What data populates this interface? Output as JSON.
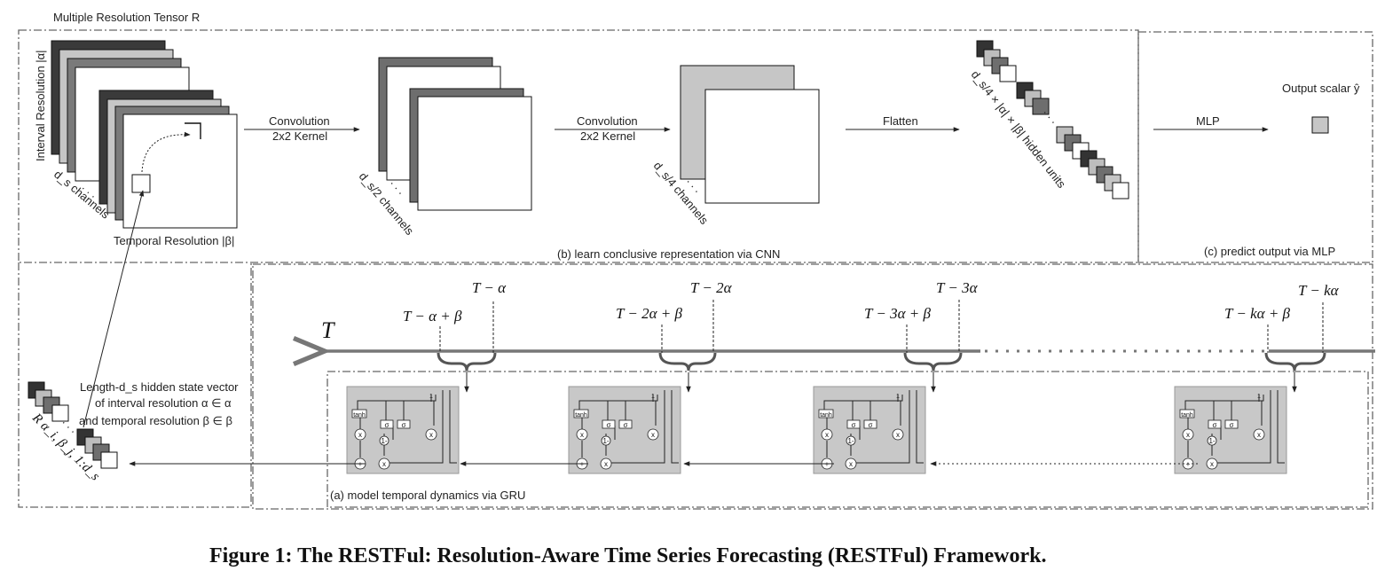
{
  "top_label": "Multiple Resolution Tensor R",
  "tensor": {
    "interval_axis": "Interval Resolution |α|",
    "temporal_axis": "Temporal Resolution |β|",
    "channels": "d_s channels"
  },
  "conv1": {
    "line1": "Convolution",
    "line2": "2x2 Kernel",
    "channels": "d_s/2 channels"
  },
  "conv2": {
    "line1": "Convolution",
    "line2": "2x2 Kernel",
    "channels": "d_s/4 channels"
  },
  "flatten": {
    "label": "Flatten",
    "units": "d_s/4 × |α| × |β| hidden units"
  },
  "mlp": {
    "label": "MLP",
    "output": "Output scalar ŷ"
  },
  "section_b": "(b) learn conclusive representation via CNN",
  "section_c": "(c) predict output via MLP",
  "section_a": "(a) model temporal dynamics via GRU",
  "timeline": {
    "axis": "T",
    "groups": [
      {
        "top": "T − α",
        "bottom": "T − α + β"
      },
      {
        "top": "T − 2α",
        "bottom": "T − 2α + β"
      },
      {
        "top": "T − 3α",
        "bottom": "T − 3α + β"
      },
      {
        "top": "T − kα",
        "bottom": "T − kα + β"
      }
    ]
  },
  "gru_labels": {
    "tanh": "tanh",
    "sigma": "σ",
    "mult": "x",
    "plus": "+",
    "one_minus": "1-",
    "one": "1"
  },
  "hidden": {
    "line1": "Length-d_s hidden state vector",
    "line2": "of interval resolution  α ∈ α",
    "line3": "and temporal resolution β ∈ β",
    "r_label": "R α_i, β_j, 1:d_s"
  },
  "caption": "Figure 1: The RESTFul: Resolution-Aware Time Series Forecasting (RESTFul) Framework."
}
